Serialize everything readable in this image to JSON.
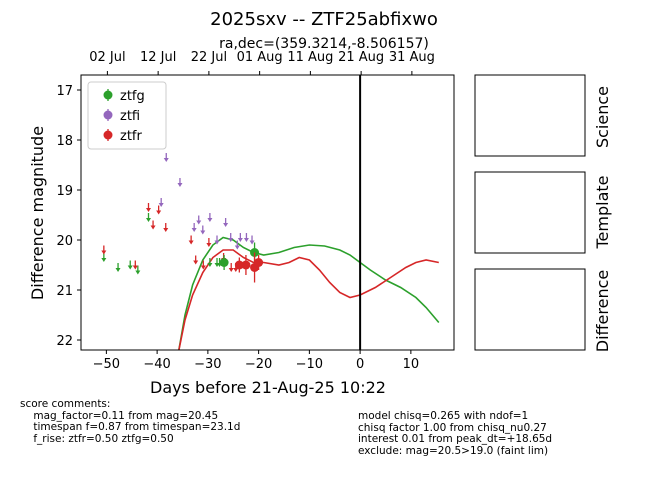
{
  "chart_data": {
    "type": "scatter",
    "title": "2025sxv -- ZTF25abfixwo",
    "subtitle": "ra,dec=(359.3214,-8.506157)",
    "xlabel": "Days before 21-Aug-25 10:22",
    "ylabel": "Difference magnitude",
    "xlim": [
      -55,
      18.5
    ],
    "ylim": [
      22.2,
      16.7
    ],
    "y_inverted": true,
    "x_ticks": [
      -50,
      -40,
      -30,
      -20,
      -10,
      0,
      10
    ],
    "x_tick_labels": [
      "−50",
      "−40",
      "−30",
      "−20",
      "−10",
      "0",
      "10"
    ],
    "y_ticks": [
      17,
      18,
      19,
      20,
      21,
      22
    ],
    "top_ticks": [
      {
        "x": -49.8,
        "label": "02 Jul"
      },
      {
        "x": -39.8,
        "label": "12 Jul"
      },
      {
        "x": -29.8,
        "label": "22 Jul"
      },
      {
        "x": -19.8,
        "label": "01 Aug"
      },
      {
        "x": -9.8,
        "label": "11 Aug"
      },
      {
        "x": 0.2,
        "label": "21 Aug"
      },
      {
        "x": 10.2,
        "label": "31 Aug"
      }
    ],
    "legend_position": "top-left",
    "vline_x": 0,
    "series": [
      {
        "name": "ztfg",
        "color": "#2ca02c",
        "detections": [
          {
            "x": -20.8,
            "y": 20.25,
            "err": 0.2
          },
          {
            "x": -26.8,
            "y": 20.45,
            "err": 0.15
          }
        ],
        "upper_limits": [
          {
            "x": -50.5,
            "y": 20.3
          },
          {
            "x": -47.7,
            "y": 20.5
          },
          {
            "x": -45.3,
            "y": 20.45
          },
          {
            "x": -43.8,
            "y": 20.55
          },
          {
            "x": -41.7,
            "y": 19.5
          },
          {
            "x": -29.6,
            "y": 20.4
          },
          {
            "x": -28.2,
            "y": 20.4
          },
          {
            "x": -27.7,
            "y": 20.4
          }
        ]
      },
      {
        "name": "ztfi",
        "color": "#9467bd",
        "detections": [],
        "upper_limits": [
          {
            "x": -38.2,
            "y": 18.3
          },
          {
            "x": -35.5,
            "y": 18.8
          },
          {
            "x": -39.2,
            "y": 19.2
          },
          {
            "x": -32.7,
            "y": 19.7
          },
          {
            "x": -31.8,
            "y": 19.55
          },
          {
            "x": -31.0,
            "y": 19.75
          },
          {
            "x": -29.6,
            "y": 19.5
          },
          {
            "x": -28.2,
            "y": 19.95
          },
          {
            "x": -26.5,
            "y": 19.6
          },
          {
            "x": -25.5,
            "y": 19.9
          },
          {
            "x": -24.2,
            "y": 20.05
          },
          {
            "x": -23.6,
            "y": 19.9
          },
          {
            "x": -22.4,
            "y": 19.9
          },
          {
            "x": -21.3,
            "y": 19.95
          }
        ]
      },
      {
        "name": "ztfr",
        "color": "#d62728",
        "detections": [
          {
            "x": -20.8,
            "y": 20.55,
            "err": 0.3
          },
          {
            "x": -20.0,
            "y": 20.45,
            "err": 0.15
          },
          {
            "x": -22.5,
            "y": 20.5,
            "err": 0.2
          },
          {
            "x": -23.8,
            "y": 20.5,
            "err": 0.15
          }
        ],
        "upper_limits": [
          {
            "x": -50.5,
            "y": 20.15
          },
          {
            "x": -44.3,
            "y": 20.45
          },
          {
            "x": -41.7,
            "y": 19.3
          },
          {
            "x": -40.8,
            "y": 19.65
          },
          {
            "x": -39.7,
            "y": 19.35
          },
          {
            "x": -38.3,
            "y": 19.7
          },
          {
            "x": -33.3,
            "y": 19.95
          },
          {
            "x": -32.4,
            "y": 20.35
          },
          {
            "x": -30.9,
            "y": 20.45
          },
          {
            "x": -29.8,
            "y": 20.0
          },
          {
            "x": -26.9,
            "y": 20.3
          },
          {
            "x": -24.5,
            "y": 20.5
          },
          {
            "x": -25.4,
            "y": 20.5
          }
        ]
      }
    ],
    "model_curves": [
      {
        "name": "ztfg",
        "color": "#2ca02c",
        "points": [
          [
            -35.8,
            22.25
          ],
          [
            -34.5,
            21.5
          ],
          [
            -33,
            20.9
          ],
          [
            -31,
            20.4
          ],
          [
            -29,
            20.1
          ],
          [
            -27,
            19.95
          ],
          [
            -25,
            20.0
          ],
          [
            -23,
            20.15
          ],
          [
            -21,
            20.25
          ],
          [
            -19,
            20.3
          ],
          [
            -16,
            20.25
          ],
          [
            -13,
            20.15
          ],
          [
            -10,
            20.1
          ],
          [
            -7,
            20.12
          ],
          [
            -4,
            20.2
          ],
          [
            -2,
            20.3
          ],
          [
            0,
            20.45
          ],
          [
            2,
            20.6
          ],
          [
            5,
            20.8
          ],
          [
            8,
            20.95
          ],
          [
            11,
            21.15
          ],
          [
            13,
            21.35
          ],
          [
            15.5,
            21.65
          ]
        ]
      },
      {
        "name": "ztfr",
        "color": "#d62728",
        "points": [
          [
            -35.8,
            22.25
          ],
          [
            -34.5,
            21.6
          ],
          [
            -33,
            21.1
          ],
          [
            -31,
            20.65
          ],
          [
            -29,
            20.35
          ],
          [
            -27,
            20.2
          ],
          [
            -25,
            20.2
          ],
          [
            -23,
            20.35
          ],
          [
            -21,
            20.45
          ],
          [
            -19,
            20.45
          ],
          [
            -16,
            20.5
          ],
          [
            -14,
            20.45
          ],
          [
            -12,
            20.35
          ],
          [
            -10,
            20.4
          ],
          [
            -8,
            20.6
          ],
          [
            -6,
            20.85
          ],
          [
            -4,
            21.05
          ],
          [
            -2,
            21.15
          ],
          [
            0,
            21.1
          ],
          [
            3,
            20.95
          ],
          [
            6,
            20.75
          ],
          [
            9,
            20.55
          ],
          [
            11,
            20.45
          ],
          [
            13,
            20.4
          ],
          [
            15.5,
            20.45
          ]
        ]
      }
    ]
  },
  "side_panels": [
    "Science",
    "Template",
    "Difference"
  ],
  "notes_left": "score comments:\n    mag_factor=0.11 from mag=20.45\n    timespan f=0.87 from timespan=23.1d\n    f_rise: ztfr=0.50 ztfg=0.50",
  "notes_right": "model chisq=0.265 with ndof=1\nchisq factor 1.00 from chisq_nu0.27\ninterest 0.01 from peak_dt=+18.65d\nexclude: mag=20.5>19.0 (faint lim)"
}
